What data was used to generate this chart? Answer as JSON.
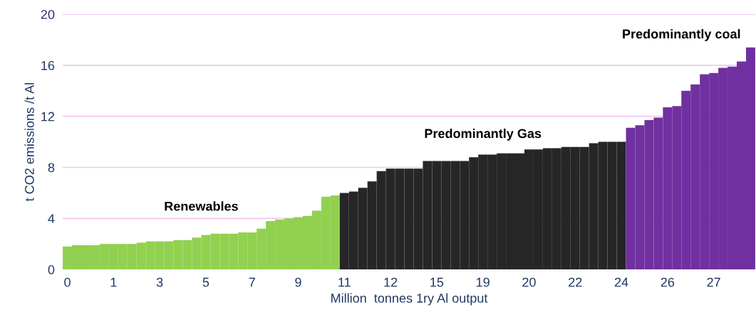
{
  "chart_data": {
    "type": "bar",
    "xlabel": "Million  tonnes 1ry Al output",
    "ylabel": "t CO2 emissions /t Al",
    "categories": [
      "0",
      null,
      null,
      null,
      null,
      "1",
      null,
      null,
      null,
      null,
      "3",
      null,
      null,
      null,
      null,
      "5",
      null,
      null,
      null,
      null,
      "7",
      null,
      null,
      null,
      null,
      "9",
      null,
      null,
      null,
      null,
      "11",
      null,
      null,
      null,
      null,
      "12",
      null,
      null,
      null,
      null,
      "15",
      null,
      null,
      null,
      null,
      "19",
      null,
      null,
      null,
      null,
      "20",
      null,
      null,
      null,
      null,
      "22",
      null,
      null,
      null,
      null,
      "24",
      null,
      null,
      null,
      null,
      "26",
      null,
      null,
      null,
      null,
      "27",
      null,
      null,
      null,
      null
    ],
    "series": [
      {
        "name": "Renewables",
        "color": "#92d050",
        "values": [
          1.8,
          1.9,
          1.9,
          1.9,
          2.0,
          2.0,
          2.0,
          2.0,
          2.1,
          2.2,
          2.2,
          2.2,
          2.3,
          2.3,
          2.5,
          2.7,
          2.8,
          2.8,
          2.8,
          2.9,
          2.9,
          3.2,
          3.8,
          3.9,
          4.0,
          4.1,
          4.2,
          4.6,
          5.7,
          5.8,
          null,
          null,
          null,
          null,
          null,
          null,
          null,
          null,
          null,
          null,
          null,
          null,
          null,
          null,
          null,
          null,
          null,
          null,
          null,
          null,
          null,
          null,
          null,
          null,
          null,
          null,
          null,
          null,
          null,
          null,
          null,
          null,
          null,
          null,
          null,
          null,
          null,
          null,
          null,
          null,
          null,
          null,
          null,
          null,
          null
        ]
      },
      {
        "name": "Predominantly Gas",
        "color": "#262626",
        "values": [
          null,
          null,
          null,
          null,
          null,
          null,
          null,
          null,
          null,
          null,
          null,
          null,
          null,
          null,
          null,
          null,
          null,
          null,
          null,
          null,
          null,
          null,
          null,
          null,
          null,
          null,
          null,
          null,
          null,
          null,
          6.0,
          6.1,
          6.4,
          6.9,
          7.7,
          7.9,
          7.9,
          7.9,
          7.9,
          8.5,
          8.5,
          8.5,
          8.5,
          8.5,
          8.8,
          9.0,
          9.0,
          9.1,
          9.1,
          9.1,
          9.4,
          9.4,
          9.5,
          9.5,
          9.6,
          9.6,
          9.6,
          9.9,
          10.0,
          10.0,
          10.0,
          null,
          null,
          null,
          null,
          null,
          null,
          null,
          null,
          null,
          null,
          null,
          null,
          null,
          null
        ]
      },
      {
        "name": "Predominantly coal",
        "color": "#7030a0",
        "values": [
          null,
          null,
          null,
          null,
          null,
          null,
          null,
          null,
          null,
          null,
          null,
          null,
          null,
          null,
          null,
          null,
          null,
          null,
          null,
          null,
          null,
          null,
          null,
          null,
          null,
          null,
          null,
          null,
          null,
          null,
          null,
          null,
          null,
          null,
          null,
          null,
          null,
          null,
          null,
          null,
          null,
          null,
          null,
          null,
          null,
          null,
          null,
          null,
          null,
          null,
          null,
          null,
          null,
          null,
          null,
          null,
          null,
          null,
          null,
          null,
          null,
          11.1,
          11.3,
          11.7,
          11.9,
          12.7,
          12.8,
          14.0,
          14.5,
          15.3,
          15.4,
          15.8,
          15.9,
          16.3,
          17.4
        ]
      }
    ],
    "ylim": [
      0,
      20
    ],
    "yticks": [
      0,
      4,
      8,
      12,
      16,
      20
    ],
    "grid": "y",
    "legend": false
  }
}
